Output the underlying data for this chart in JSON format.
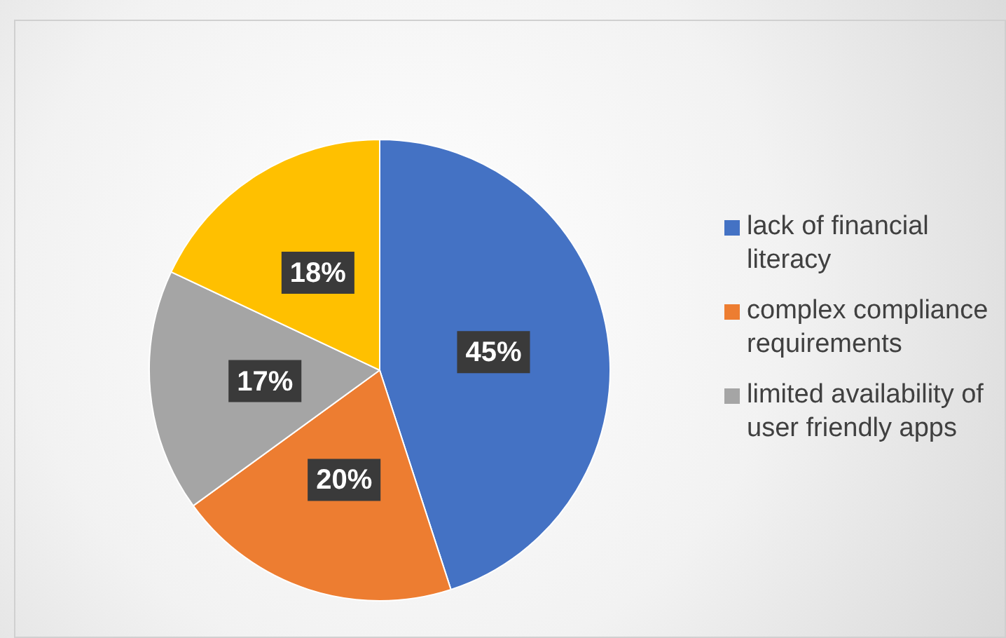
{
  "chart_data": {
    "type": "pie",
    "categories": [
      "lack of financial literacy",
      "complex compliance requirements",
      "limited availability of user friendly apps",
      null
    ],
    "values": [
      45,
      20,
      17,
      18
    ],
    "colors": [
      "#4472c4",
      "#ed7d31",
      "#a5a5a5",
      "#ffc000"
    ],
    "value_labels": [
      "45%",
      "20%",
      "17%",
      "18%"
    ],
    "legend": "right"
  }
}
